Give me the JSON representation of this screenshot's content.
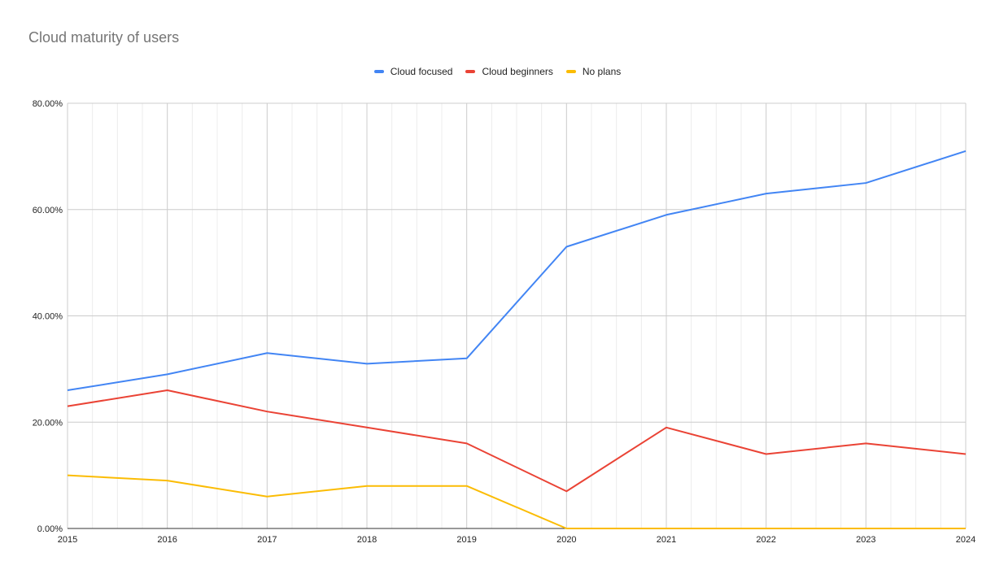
{
  "chart_data": {
    "type": "line",
    "title": "Cloud maturity of users",
    "x": [
      "2015",
      "2016",
      "2017",
      "2018",
      "2019",
      "2020",
      "2021",
      "2022",
      "2023",
      "2024"
    ],
    "ylim": [
      0,
      80
    ],
    "yticks": [
      "0.00%",
      "20.00%",
      "40.00%",
      "60.00%",
      "80.00%"
    ],
    "ytick_values": [
      0,
      20,
      40,
      60,
      80
    ],
    "grid": true,
    "legend": "top-center",
    "series": [
      {
        "name": "Cloud focused",
        "color": "#4285f4",
        "values": [
          26,
          29,
          33,
          31,
          32,
          53,
          59,
          63,
          65,
          71
        ]
      },
      {
        "name": "Cloud beginners",
        "color": "#ea4335",
        "values": [
          23,
          26,
          22,
          19,
          16,
          7,
          19,
          14,
          16,
          14
        ]
      },
      {
        "name": "No plans",
        "color": "#fbbc04",
        "values": [
          10,
          9,
          6,
          8,
          8,
          0,
          0,
          0,
          0,
          0
        ]
      }
    ]
  }
}
